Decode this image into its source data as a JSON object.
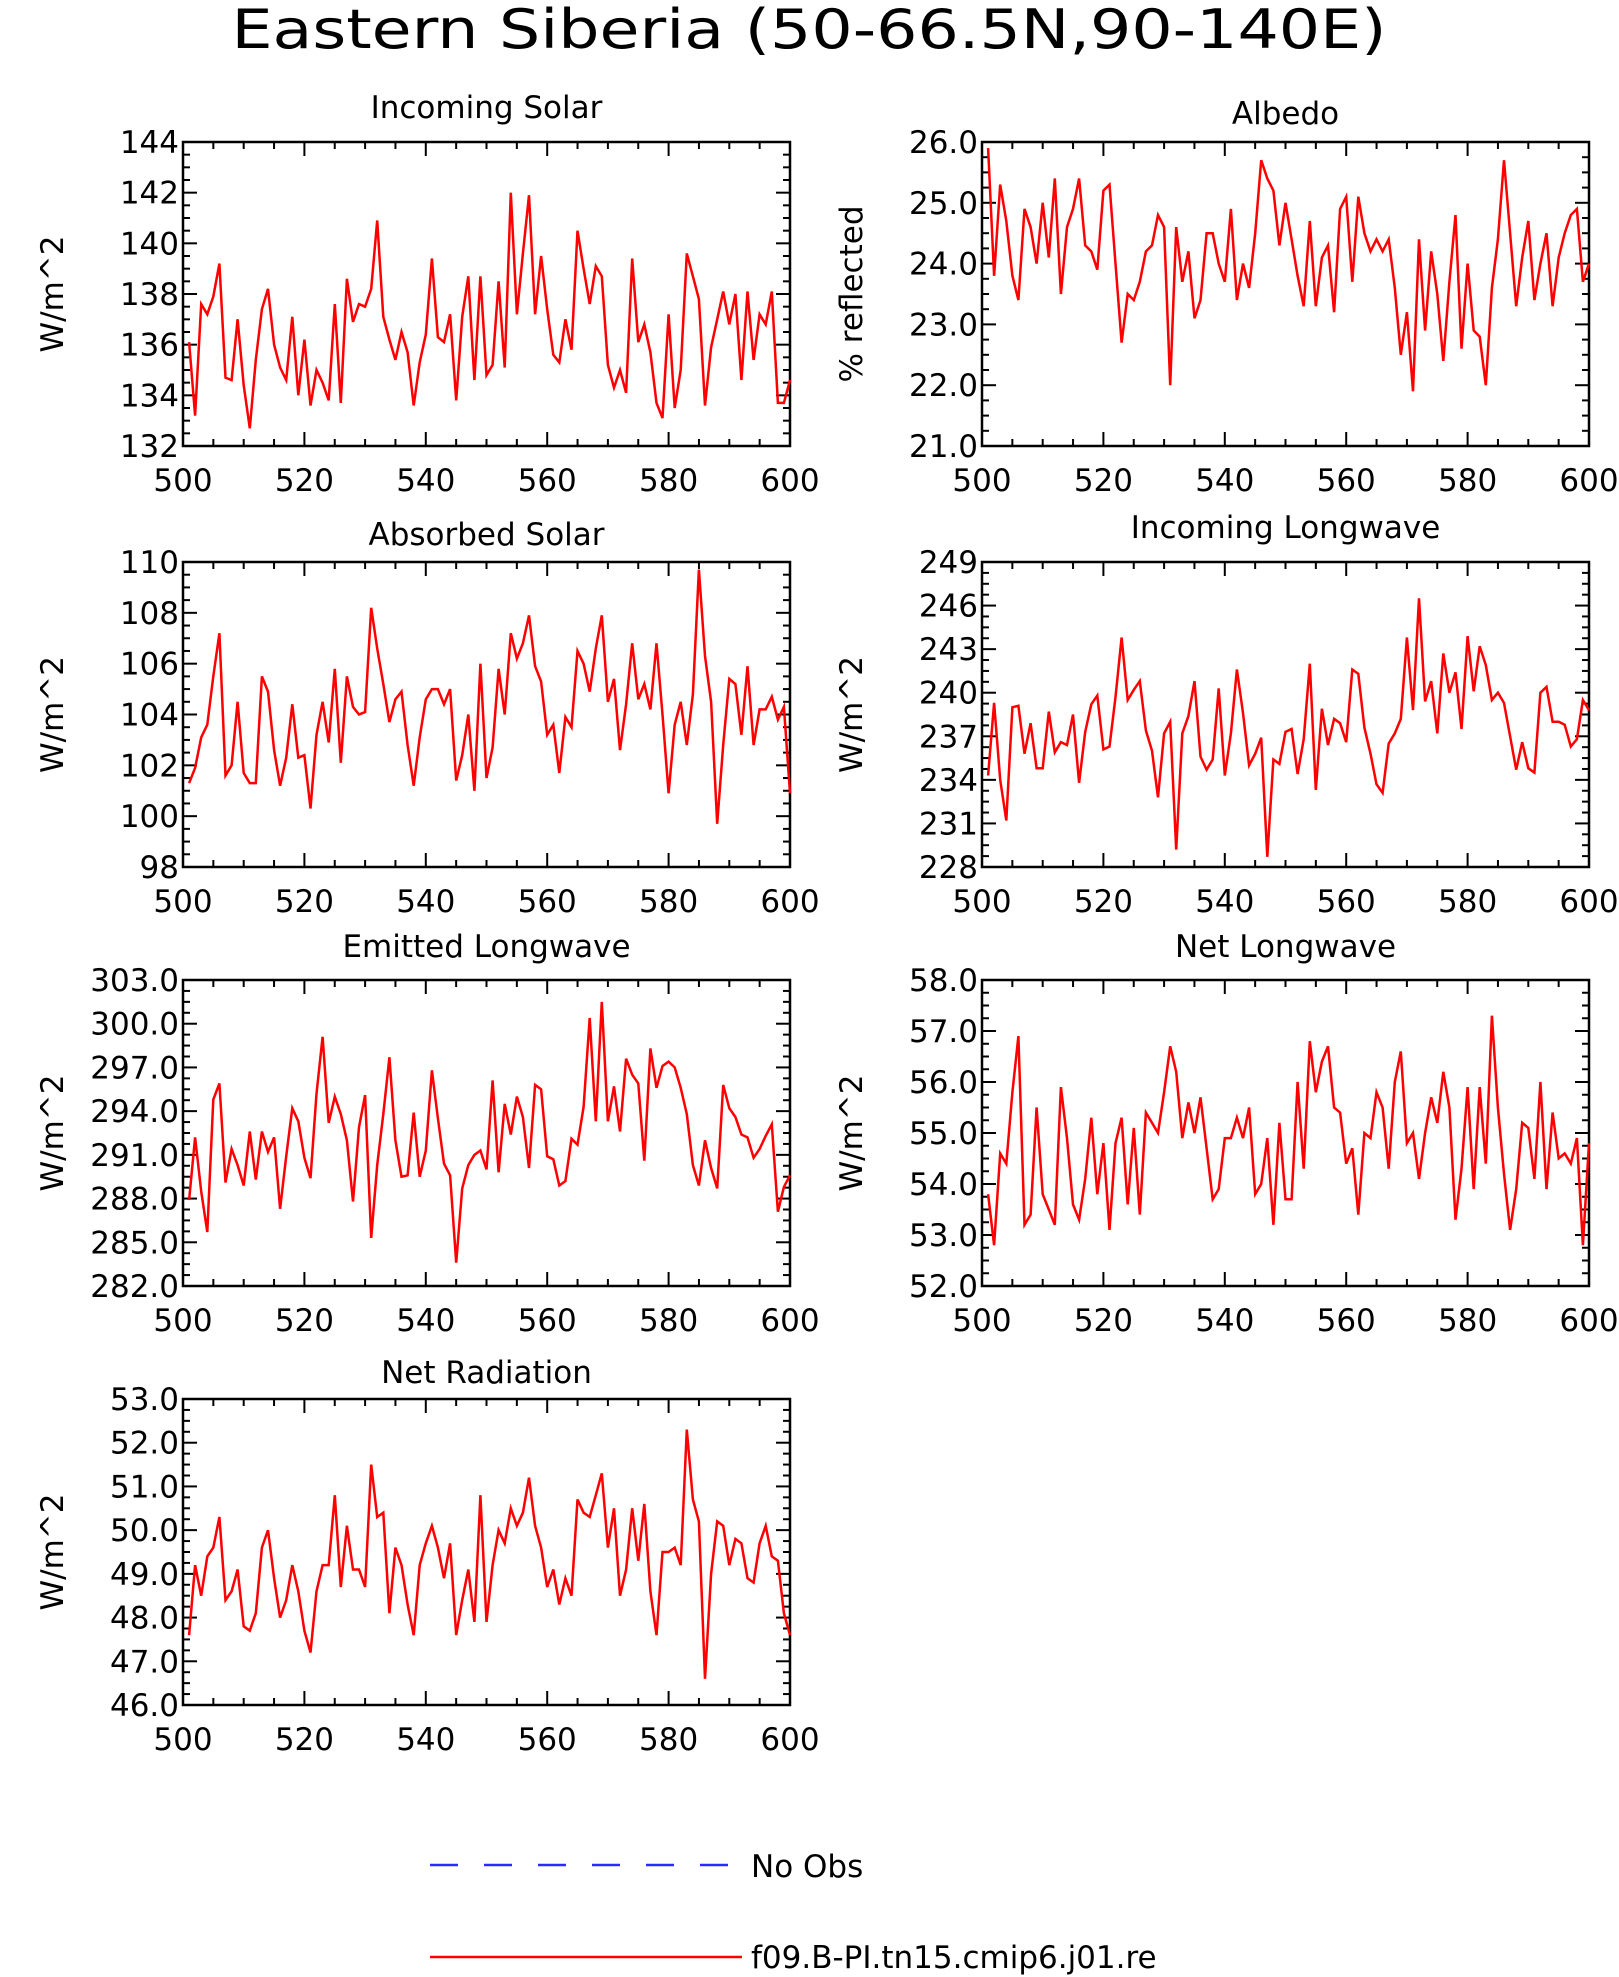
{
  "title": "Eastern Siberia (50-66.5N,90-140E)",
  "legend": [
    {
      "label": "No Obs",
      "color": "#2a2aff",
      "style": "dashed"
    },
    {
      "label": "f09.B-PI.tn15.cmip6.j01.re",
      "color": "#ff0000",
      "style": "solid"
    }
  ],
  "line_color": "#ff0000",
  "chart_data": [
    {
      "type": "line",
      "title": "Incoming Solar",
      "ylabel": "W/m^2",
      "xlim": [
        500,
        600
      ],
      "ylim": [
        132,
        144
      ],
      "xticks": [
        "500",
        "520",
        "540",
        "560",
        "580",
        "600"
      ],
      "yticks": [
        "132",
        "134",
        "136",
        "138",
        "140",
        "142",
        "144"
      ],
      "x_start": 501,
      "values": [
        136.1,
        133.2,
        137.6,
        137.2,
        137.9,
        139.2,
        134.7,
        134.6,
        137.0,
        134.4,
        132.7,
        135.4,
        137.4,
        138.2,
        136.0,
        135.1,
        134.6,
        137.1,
        134.0,
        136.2,
        133.6,
        135.0,
        134.5,
        133.8,
        137.6,
        133.7,
        138.6,
        136.9,
        137.6,
        137.5,
        138.2,
        140.9,
        137.1,
        136.2,
        135.4,
        136.5,
        135.7,
        133.6,
        135.3,
        136.4,
        139.4,
        136.3,
        136.1,
        137.2,
        133.8,
        137.1,
        138.7,
        134.6,
        138.7,
        134.8,
        135.2,
        138.5,
        135.1,
        142.0,
        137.2,
        139.6,
        141.9,
        137.2,
        139.5,
        137.4,
        135.6,
        135.3,
        137.0,
        135.8,
        140.5,
        139.0,
        137.6,
        139.1,
        138.7,
        135.2,
        134.3,
        135.0,
        134.1,
        139.4,
        136.1,
        136.8,
        135.7,
        133.7,
        133.1,
        137.2,
        133.5,
        135.0,
        139.6,
        138.7,
        137.8,
        133.6,
        135.9,
        137.0,
        138.1,
        136.8,
        138.0,
        134.6,
        138.1,
        135.4,
        137.2,
        136.8,
        138.1,
        133.7,
        133.7,
        134.6
      ]
    },
    {
      "type": "line",
      "title": "Albedo",
      "ylabel": "% reflected",
      "xlim": [
        500,
        600
      ],
      "ylim": [
        21,
        26
      ],
      "xticks": [
        "500",
        "520",
        "540",
        "560",
        "580",
        "600"
      ],
      "yticks": [
        "21.0",
        "22.0",
        "23.0",
        "24.0",
        "25.0",
        "26.0"
      ],
      "x_start": 501,
      "values": [
        25.9,
        23.8,
        25.3,
        24.7,
        23.8,
        23.4,
        24.9,
        24.6,
        24.0,
        25.0,
        24.1,
        25.4,
        23.5,
        24.6,
        24.9,
        25.4,
        24.3,
        24.2,
        23.9,
        25.2,
        25.3,
        24.0,
        22.7,
        23.5,
        23.4,
        23.7,
        24.2,
        24.3,
        24.8,
        24.6,
        22.0,
        24.6,
        23.7,
        24.2,
        23.1,
        23.4,
        24.5,
        24.5,
        24.0,
        23.7,
        24.9,
        23.4,
        24.0,
        23.6,
        24.5,
        25.7,
        25.4,
        25.2,
        24.3,
        25.0,
        24.4,
        23.8,
        23.3,
        24.7,
        23.3,
        24.1,
        24.3,
        23.2,
        24.9,
        25.1,
        23.7,
        25.1,
        24.5,
        24.2,
        24.4,
        24.2,
        24.4,
        23.6,
        22.5,
        23.2,
        21.9,
        24.4,
        22.9,
        24.2,
        23.5,
        22.4,
        23.7,
        24.8,
        22.6,
        24.0,
        22.9,
        22.8,
        22.0,
        23.6,
        24.4,
        25.7,
        24.5,
        23.3,
        24.1,
        24.7,
        23.4,
        24.0,
        24.5,
        23.3,
        24.1,
        24.5,
        24.8,
        24.9,
        23.7,
        24.0
      ]
    },
    {
      "type": "line",
      "title": "Absorbed Solar",
      "ylabel": "W/m^2",
      "xlim": [
        500,
        600
      ],
      "ylim": [
        98,
        110
      ],
      "xticks": [
        "500",
        "520",
        "540",
        "560",
        "580",
        "600"
      ],
      "yticks": [
        "98",
        "100",
        "102",
        "104",
        "106",
        "108",
        "110"
      ],
      "x_start": 501,
      "values": [
        101.3,
        101.9,
        103.1,
        103.6,
        105.5,
        107.2,
        101.6,
        102.0,
        104.5,
        101.7,
        101.3,
        101.3,
        105.5,
        104.9,
        102.6,
        101.2,
        102.3,
        104.4,
        102.3,
        102.4,
        100.3,
        103.2,
        104.5,
        102.9,
        105.8,
        102.1,
        105.5,
        104.3,
        104.0,
        104.1,
        108.2,
        106.6,
        105.2,
        103.7,
        104.6,
        104.9,
        102.8,
        101.2,
        103.1,
        104.6,
        105.0,
        105.0,
        104.4,
        105.0,
        101.4,
        102.4,
        104.0,
        101.0,
        106.0,
        101.5,
        102.7,
        105.8,
        104.0,
        107.2,
        106.2,
        106.8,
        107.9,
        105.9,
        105.3,
        103.2,
        103.6,
        101.7,
        103.9,
        103.5,
        106.5,
        106.0,
        104.9,
        106.6,
        107.9,
        104.5,
        105.4,
        102.6,
        104.4,
        106.8,
        104.6,
        105.2,
        104.2,
        106.8,
        104.0,
        100.9,
        103.6,
        104.5,
        102.8,
        104.8,
        109.7,
        106.3,
        104.5,
        99.7,
        102.8,
        105.4,
        105.2,
        103.2,
        105.9,
        102.8,
        104.2,
        104.2,
        104.7,
        103.8,
        104.3,
        100.9
      ]
    },
    {
      "type": "line",
      "title": "Incoming Longwave",
      "ylabel": "W/m^2",
      "xlim": [
        500,
        600
      ],
      "ylim": [
        228,
        249
      ],
      "xticks": [
        "500",
        "520",
        "540",
        "560",
        "580",
        "600"
      ],
      "yticks": [
        "228",
        "231",
        "234",
        "237",
        "240",
        "243",
        "246",
        "249"
      ],
      "x_start": 501,
      "values": [
        234.3,
        239.3,
        234.0,
        231.2,
        239.0,
        239.1,
        235.8,
        237.9,
        234.8,
        234.8,
        238.7,
        235.9,
        236.6,
        236.4,
        238.5,
        233.8,
        237.3,
        239.2,
        239.8,
        236.1,
        236.3,
        239.7,
        243.8,
        239.5,
        240.2,
        240.8,
        237.4,
        236.0,
        232.8,
        237.2,
        238.0,
        229.2,
        237.2,
        238.4,
        240.8,
        235.6,
        234.7,
        235.4,
        240.3,
        234.3,
        237.2,
        241.6,
        238.6,
        235.0,
        235.8,
        236.9,
        228.7,
        235.4,
        235.1,
        237.3,
        237.5,
        234.4,
        236.8,
        242.0,
        233.3,
        238.9,
        236.4,
        238.2,
        237.9,
        236.6,
        241.6,
        241.3,
        237.6,
        235.8,
        233.7,
        233.1,
        236.5,
        237.2,
        238.2,
        243.8,
        238.8,
        246.5,
        239.4,
        240.8,
        237.2,
        242.7,
        240.0,
        241.4,
        237.5,
        243.9,
        240.1,
        243.2,
        241.9,
        239.5,
        240.0,
        239.3,
        237.0,
        234.7,
        236.6,
        234.8,
        234.5,
        240.0,
        240.4,
        238.0,
        238.0,
        237.8,
        236.3,
        236.8,
        239.5,
        238.8
      ]
    },
    {
      "type": "line",
      "title": "Emitted Longwave",
      "ylabel": "W/m^2",
      "xlim": [
        500,
        600
      ],
      "ylim": [
        282,
        303
      ],
      "xticks": [
        "500",
        "520",
        "540",
        "560",
        "580",
        "600"
      ],
      "yticks": [
        "282.0",
        "285.0",
        "288.0",
        "291.0",
        "294.0",
        "297.0",
        "300.0",
        "303.0"
      ],
      "x_start": 501,
      "values": [
        287.9,
        292.2,
        288.5,
        285.7,
        294.8,
        295.9,
        289.1,
        291.4,
        290.3,
        288.9,
        292.6,
        289.3,
        292.6,
        291.2,
        292.2,
        287.3,
        290.9,
        294.2,
        293.3,
        290.8,
        289.4,
        295.2,
        299.1,
        293.2,
        295.0,
        293.8,
        292.0,
        287.8,
        292.9,
        295.1,
        285.3,
        290.3,
        293.8,
        297.7,
        292.0,
        289.5,
        289.6,
        293.9,
        289.5,
        291.3,
        296.8,
        293.5,
        290.4,
        289.6,
        283.6,
        288.7,
        290.3,
        291.0,
        291.3,
        290.0,
        296.1,
        289.8,
        294.5,
        292.4,
        295.0,
        293.6,
        290.1,
        295.8,
        295.5,
        290.9,
        290.7,
        288.9,
        289.2,
        292.1,
        291.7,
        294.3,
        300.4,
        293.3,
        301.5,
        293.3,
        295.7,
        292.6,
        297.6,
        296.5,
        295.9,
        290.6,
        298.3,
        295.6,
        297.1,
        297.4,
        297.0,
        295.6,
        293.8,
        290.3,
        288.9,
        292.0,
        290.1,
        288.7,
        295.8,
        294.2,
        293.6,
        292.4,
        292.2,
        290.8,
        291.4,
        292.3,
        293.1,
        287.1,
        288.8,
        289.6
      ]
    },
    {
      "type": "line",
      "title": "Net Longwave",
      "ylabel": "W/m^2",
      "xlim": [
        500,
        600
      ],
      "ylim": [
        52,
        58
      ],
      "xticks": [
        "500",
        "520",
        "540",
        "560",
        "580",
        "600"
      ],
      "yticks": [
        "52.0",
        "53.0",
        "54.0",
        "55.0",
        "56.0",
        "57.0",
        "58.0"
      ],
      "x_start": 501,
      "values": [
        53.8,
        52.8,
        54.6,
        54.4,
        55.8,
        56.9,
        53.2,
        53.4,
        55.5,
        53.8,
        53.5,
        53.2,
        55.9,
        54.9,
        53.6,
        53.3,
        54.1,
        55.3,
        53.8,
        54.8,
        53.1,
        54.8,
        55.3,
        53.6,
        55.1,
        53.4,
        55.4,
        55.2,
        55.0,
        55.8,
        56.7,
        56.2,
        54.9,
        55.6,
        55.0,
        55.7,
        54.7,
        53.7,
        53.9,
        54.9,
        54.9,
        55.3,
        54.9,
        55.5,
        53.8,
        54.0,
        54.9,
        53.2,
        55.2,
        53.7,
        53.7,
        56.0,
        54.3,
        56.8,
        55.8,
        56.4,
        56.7,
        55.5,
        55.4,
        54.4,
        54.7,
        53.4,
        55.0,
        54.9,
        55.8,
        55.5,
        54.3,
        56.0,
        56.6,
        54.8,
        55.0,
        54.1,
        55.0,
        55.7,
        55.2,
        56.2,
        55.5,
        53.3,
        54.3,
        55.9,
        53.9,
        55.9,
        54.4,
        57.3,
        55.5,
        54.2,
        53.1,
        53.9,
        55.2,
        55.1,
        54.1,
        56.0,
        53.9,
        55.4,
        54.5,
        54.6,
        54.4,
        54.9,
        52.8,
        54.8
      ]
    },
    {
      "type": "line",
      "title": "Net Radiation",
      "ylabel": "W/m^2",
      "xlim": [
        500,
        600
      ],
      "ylim": [
        46,
        53
      ],
      "xticks": [
        "500",
        "520",
        "540",
        "560",
        "580",
        "600"
      ],
      "yticks": [
        "46.0",
        "47.0",
        "48.0",
        "49.0",
        "50.0",
        "51.0",
        "52.0",
        "53.0"
      ],
      "x_start": 501,
      "values": [
        47.6,
        49.2,
        48.5,
        49.4,
        49.6,
        50.3,
        48.4,
        48.6,
        49.1,
        47.8,
        47.7,
        48.1,
        49.6,
        50.0,
        48.9,
        48.0,
        48.4,
        49.2,
        48.6,
        47.7,
        47.2,
        48.6,
        49.2,
        49.2,
        50.8,
        48.7,
        50.1,
        49.1,
        49.1,
        48.7,
        51.5,
        50.3,
        50.4,
        48.1,
        49.6,
        49.2,
        48.3,
        47.6,
        49.2,
        49.7,
        50.1,
        49.6,
        48.9,
        49.7,
        47.6,
        48.4,
        49.1,
        47.9,
        50.8,
        47.9,
        49.2,
        50.0,
        49.7,
        50.5,
        50.1,
        50.4,
        51.2,
        50.1,
        49.6,
        48.7,
        49.1,
        48.3,
        48.9,
        48.5,
        50.7,
        50.4,
        50.3,
        50.8,
        51.3,
        49.6,
        50.5,
        48.5,
        49.1,
        50.5,
        49.3,
        50.6,
        48.6,
        47.6,
        49.5,
        49.5,
        49.6,
        49.2,
        52.3,
        50.7,
        50.2,
        46.6,
        49.0,
        50.2,
        50.1,
        49.2,
        49.8,
        49.7,
        48.9,
        48.8,
        49.7,
        50.1,
        49.4,
        49.3,
        48.1,
        47.6
      ]
    }
  ]
}
